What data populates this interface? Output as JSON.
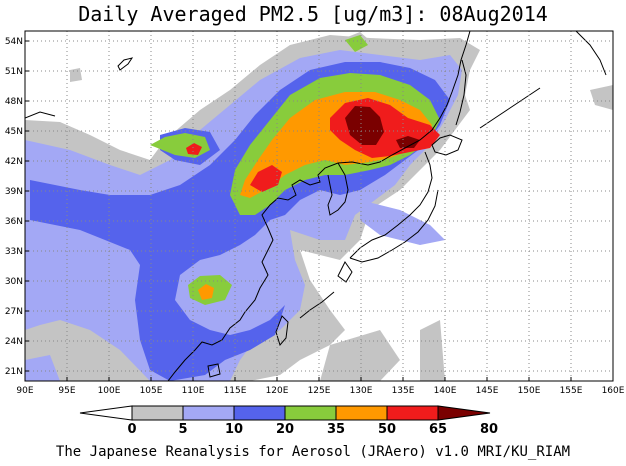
{
  "map": {
    "title": "Daily Averaged PM2.5 [ug/m3]: 08Aug2014",
    "footer": "The Japanese Reanalysis for Aerosol (JRAero) v1.0 MRI/KU_RIAM",
    "lon_labels": [
      "90E",
      "95E",
      "100E",
      "105E",
      "110E",
      "115E",
      "120E",
      "125E",
      "130E",
      "135E",
      "140E",
      "145E",
      "150E",
      "155E",
      "160E"
    ],
    "lat_labels": [
      "54N",
      "51N",
      "48N",
      "45N",
      "42N",
      "39N",
      "36N",
      "33N",
      "30N",
      "27N",
      "24N",
      "21N"
    ],
    "region": {
      "lon_min": 90,
      "lon_max": 160,
      "lat_min": 20,
      "lat_max": 55
    },
    "colorbar": {
      "ticks": [
        "0",
        "5",
        "10",
        "20",
        "35",
        "50",
        "65",
        "80"
      ],
      "colors": [
        "#ffffff",
        "#c4c4c4",
        "#a3a8f5",
        "#5563ec",
        "#88cc3c",
        "#ff9900",
        "#f01c1c",
        "#7a0000"
      ]
    }
  }
}
